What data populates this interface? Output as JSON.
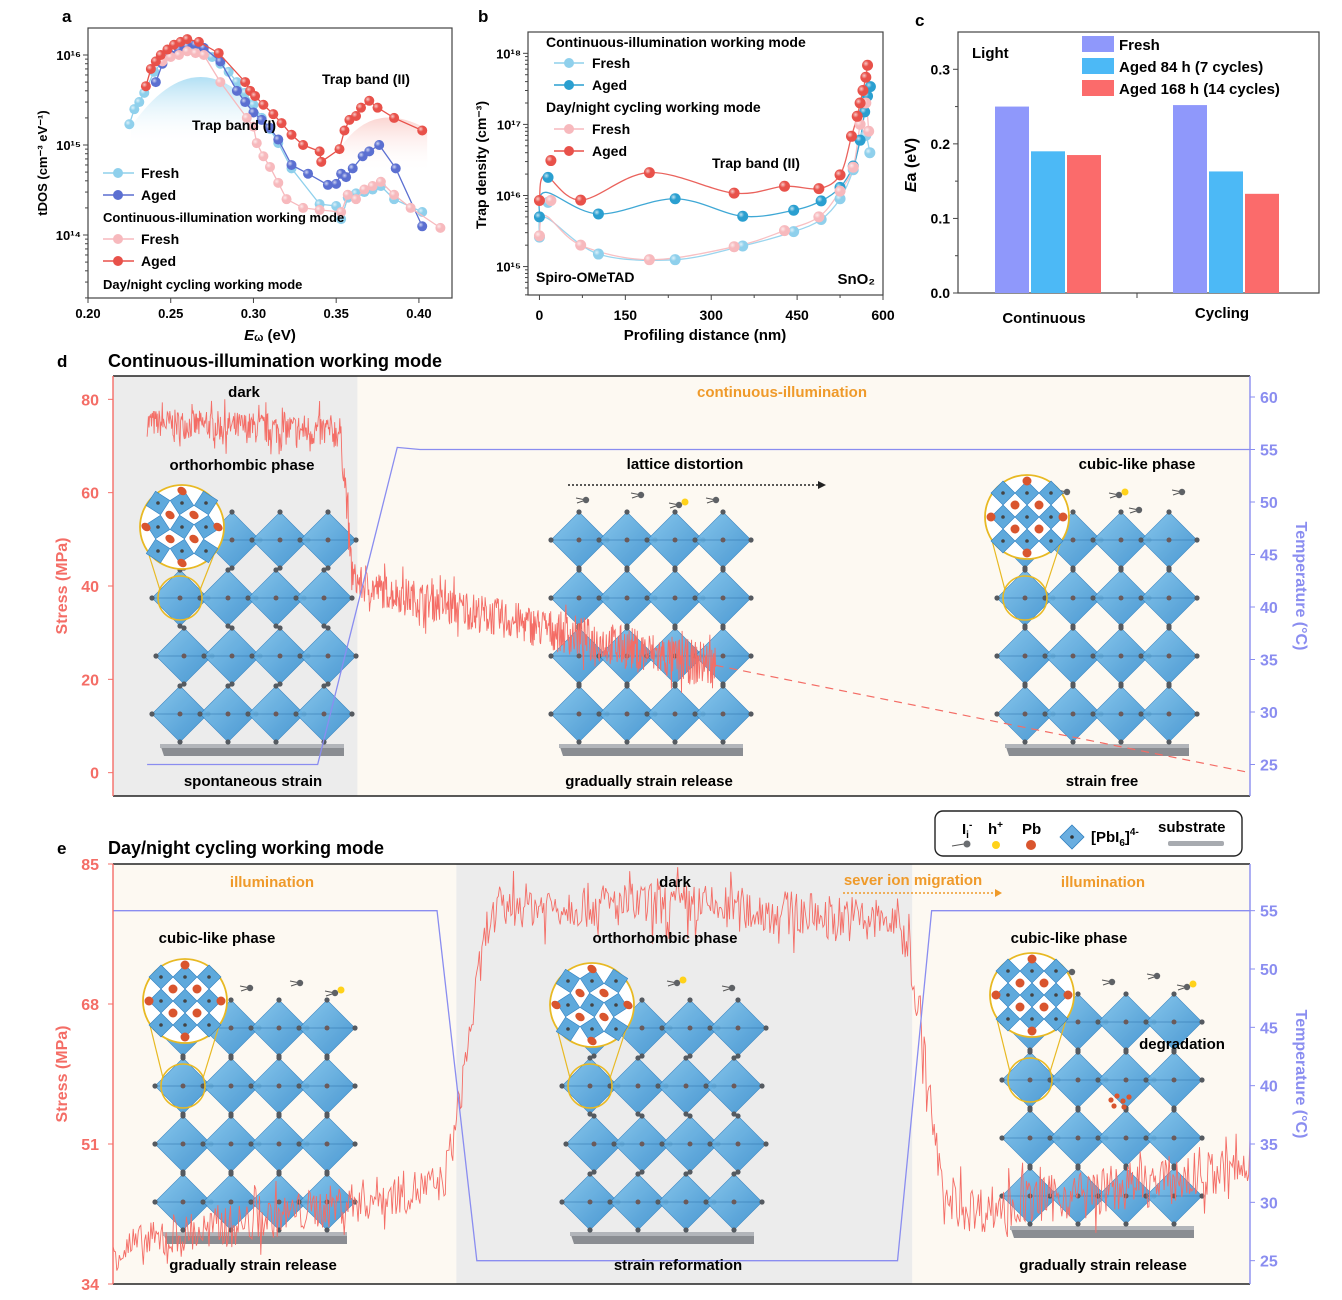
{
  "colors": {
    "fresh_cont": "#8fd0ec",
    "aged_cont_a": "#5b6fd1",
    "fresh_cyc": "#f7b9bd",
    "aged_cyc": "#e8514a",
    "aged_cont_b": "#2a9fd0",
    "bar_fresh": "#8f98fb",
    "bar_aged84": "#4cb9f6",
    "bar_aged168": "#fb6b6b",
    "stress": "#f46d66",
    "temp": "#8a8df0",
    "orange": "#ef9a2a",
    "dark_bg": "#ececec",
    "light_bg": "#fdf9f2"
  },
  "chart_data": [
    {
      "panel": "a",
      "type": "line",
      "panel_label": "a",
      "xlabel_main": "E",
      "xlabel_sub": "ω",
      "xlabel_unit": " (eV)",
      "ylabel": "tDOS (cm⁻³ eV⁻¹)",
      "xlim": [
        0.2,
        0.42
      ],
      "ylim_log10": [
        13.3,
        16.3
      ],
      "yscale": "log",
      "xticks": [
        "0.20",
        "0.25",
        "0.30",
        "0.35",
        "0.40"
      ],
      "xtick_values": [
        0.2,
        0.25,
        0.3,
        0.35,
        0.4
      ],
      "yticks": [
        "10¹⁶",
        "10¹⁵",
        "10¹⁴"
      ],
      "ytick_values": [
        1e+16,
        1000000000000000.0,
        100000000000000.0
      ],
      "annotations": [
        "Trap band (I)",
        "Trap band (II)"
      ],
      "legend": {
        "group1_title": "Continuous-illumination working mode",
        "group2_title": "Day/night cycling working mode",
        "entries": [
          "Fresh",
          "Aged",
          "Fresh",
          "Aged"
        ]
      },
      "series": [
        {
          "name": "Fresh (continuous)",
          "color_key": "fresh_cont",
          "x": [
            0.225,
            0.228,
            0.231,
            0.234,
            0.24,
            0.245,
            0.25,
            0.255,
            0.26,
            0.265,
            0.27,
            0.275,
            0.28,
            0.285,
            0.29,
            0.295,
            0.3,
            0.305,
            0.31,
            0.315,
            0.323,
            0.34,
            0.35,
            0.353,
            0.357,
            0.362,
            0.367,
            0.372,
            0.377,
            0.385,
            0.402
          ],
          "y": [
            1700000000000000.0,
            2500000000000000.0,
            3000000000000000.0,
            3800000000000000.0,
            6500000000000000.0,
            8500000000000000.0,
            1e+16,
            1.1e+16,
            1.15e+16,
            1.15e+16,
            1.1e+16,
            9500000000000000.0,
            8000000000000000.0,
            6500000000000000.0,
            5000000000000000.0,
            3800000000000000.0,
            2800000000000000.0,
            2000000000000000.0,
            1500000000000000.0,
            1050000000000000.0,
            550000000000000.0,
            220000000000000.0,
            210000000000000.0,
            150000000000000.0,
            260000000000000.0,
            290000000000000.0,
            300000000000000.0,
            320000000000000.0,
            350000000000000.0,
            250000000000000.0,
            180000000000000.0
          ]
        },
        {
          "name": "Aged (continuous)",
          "color_key": "aged_cont_a",
          "x": [
            0.241,
            0.245,
            0.25,
            0.255,
            0.26,
            0.265,
            0.27,
            0.28,
            0.29,
            0.295,
            0.3,
            0.305,
            0.31,
            0.315,
            0.323,
            0.333,
            0.345,
            0.35,
            0.353,
            0.356,
            0.36,
            0.366,
            0.37,
            0.376,
            0.386,
            0.402
          ],
          "y": [
            5000000000000000.0,
            8000000000000000.0,
            1e+16,
            1.15e+16,
            1.25e+16,
            1.3e+16,
            1.2e+16,
            8500000000000000.0,
            4000000000000000.0,
            3000000000000000.0,
            2300000000000000.0,
            1900000000000000.0,
            1550000000000000.0,
            1150000000000000.0,
            600000000000000.0,
            480000000000000.0,
            360000000000000.0,
            370000000000000.0,
            480000000000000.0,
            440000000000000.0,
            550000000000000.0,
            750000000000000.0,
            850000000000000.0,
            1000000000000000.0,
            550000000000000.0,
            125000000000000.0
          ]
        },
        {
          "name": "Fresh (cycling)",
          "color_key": "fresh_cyc",
          "x": [
            0.245,
            0.25,
            0.255,
            0.26,
            0.265,
            0.27,
            0.28,
            0.296,
            0.3,
            0.302,
            0.306,
            0.31,
            0.315,
            0.32,
            0.33,
            0.34,
            0.353,
            0.357,
            0.362,
            0.367,
            0.372,
            0.377,
            0.385,
            0.395,
            0.413
          ],
          "y": [
            8500000000000000.0,
            9500000000000000.0,
            1e+16,
            1.1e+16,
            1.05e+16,
            1e+16,
            5000000000000000.0,
            2000000000000000.0,
            1600000000000000.0,
            1050000000000000.0,
            750000000000000.0,
            570000000000000.0,
            380000000000000.0,
            250000000000000.0,
            200000000000000.0,
            190000000000000.0,
            180000000000000.0,
            280000000000000.0,
            250000000000000.0,
            320000000000000.0,
            350000000000000.0,
            390000000000000.0,
            280000000000000.0,
            200000000000000.0,
            120000000000000.0
          ]
        },
        {
          "name": "Aged (cycling)",
          "color_key": "aged_cyc",
          "x": [
            0.235,
            0.238,
            0.241,
            0.244,
            0.248,
            0.252,
            0.256,
            0.26,
            0.267,
            0.279,
            0.295,
            0.298,
            0.301,
            0.306,
            0.312,
            0.317,
            0.323,
            0.33,
            0.34,
            0.341,
            0.352,
            0.355,
            0.358,
            0.362,
            0.365,
            0.37,
            0.375,
            0.385,
            0.402
          ],
          "y": [
            4500000000000000.0,
            7000000000000000.0,
            8500000000000000.0,
            1e+16,
            1.15e+16,
            1.3e+16,
            1.4e+16,
            1.5e+16,
            1.4e+16,
            1.05e+16,
            5000000000000000.0,
            4000000000000000.0,
            3500000000000000.0,
            2800000000000000.0,
            2200000000000000.0,
            1750000000000000.0,
            1300000000000000.0,
            1000000000000000.0,
            850000000000000.0,
            650000000000000.0,
            900000000000000.0,
            1450000000000000.0,
            1900000000000000.0,
            2100000000000000.0,
            2600000000000000.0,
            3100000000000000.0,
            2600000000000000.0,
            2000000000000000.0,
            1450000000000000.0
          ]
        }
      ]
    },
    {
      "panel": "b",
      "type": "line",
      "panel_label": "b",
      "xlabel": "Profiling distance (nm)",
      "ylabel": "Trap density (cm⁻³)",
      "xlim": [
        -20,
        600
      ],
      "ylim_log10": [
        14.6,
        18.3
      ],
      "yscale": "log",
      "xticks": [
        "0",
        "150",
        "300",
        "450",
        "600"
      ],
      "xtick_values": [
        0,
        150,
        300,
        450,
        600
      ],
      "yticks": [
        "10¹⁸",
        "10¹⁷",
        "10¹⁶",
        "10¹⁵"
      ],
      "ytick_values": [
        1e+18,
        1e+17,
        1e+16,
        1000000000000000.0
      ],
      "annotations": [
        "Trap band (II)",
        "Spiro-OMeTAD",
        "SnO₂"
      ],
      "legend": {
        "group1_title": "Continuous-illumination working mode",
        "group2_title": "Day/night cycling working mode",
        "entries": [
          "Fresh",
          "Aged",
          "Fresh",
          "Aged"
        ]
      },
      "series": [
        {
          "name": "Fresh (continuous)",
          "color_key": "fresh_cont",
          "x": [
            0,
            15,
            103,
            237,
            355,
            444,
            492,
            525,
            548,
            560,
            570,
            577
          ],
          "y": [
            2600000000000000.0,
            8000000000000000.0,
            1500000000000000.0,
            1250000000000000.0,
            1950000000000000.0,
            3100000000000000.0,
            4600000000000000.0,
            9000000000000000.0,
            2.3e+16,
            6e+16,
            7e+16,
            4e+16
          ]
        },
        {
          "name": "Aged (continuous)",
          "color_key": "aged_cont_b",
          "x": [
            0,
            15,
            103,
            237,
            355,
            444,
            492,
            525,
            548,
            560,
            568,
            573,
            578
          ],
          "y": [
            5000000000000000.0,
            1.8e+16,
            5500000000000000.0,
            9000000000000000.0,
            5100000000000000.0,
            6200000000000000.0,
            8400000000000000.0,
            1.3e+16,
            2.6e+16,
            6e+16,
            1.5e+17,
            2.5e+17,
            3.4e+17
          ]
        },
        {
          "name": "Fresh (cycling)",
          "color_key": "fresh_cyc",
          "x": [
            0,
            20,
            72,
            192,
            340,
            428,
            488,
            525,
            548,
            560,
            570,
            575
          ],
          "y": [
            2700000000000000.0,
            8500000000000000.0,
            2000000000000000.0,
            1250000000000000.0,
            1900000000000000.0,
            3200000000000000.0,
            5000000000000000.0,
            1.15e+16,
            2.5e+16,
            1e+17,
            2e+17,
            8e+16
          ]
        },
        {
          "name": "Aged (cycling)",
          "color_key": "aged_cyc",
          "x": [
            0,
            20,
            72,
            192,
            340,
            428,
            488,
            525,
            545,
            555,
            560,
            565,
            570,
            573
          ],
          "y": [
            8500000000000000.0,
            3.1e+16,
            8600000000000000.0,
            2.1e+16,
            1.08e+16,
            1.35e+16,
            1.25e+16,
            1.95e+16,
            6.8e+16,
            1.3e+17,
            2e+17,
            3e+17,
            4.6e+17,
            6.8e+17
          ]
        }
      ]
    },
    {
      "panel": "c",
      "type": "bar",
      "panel_label": "c",
      "title_inside": "Light",
      "ylabel_main": "E",
      "ylabel_sub": "a",
      "ylabel_unit": "  (eV)",
      "categories": [
        "Continuous",
        "Cycling"
      ],
      "ylim": [
        0,
        0.35
      ],
      "yticks": [
        "0.0",
        "0.1",
        "0.2",
        "0.3"
      ],
      "ytick_values": [
        0,
        0.1,
        0.2,
        0.3
      ],
      "legend_placement": "top-right",
      "series": [
        {
          "name": "Fresh",
          "color_key": "bar_fresh",
          "values": [
            0.25,
            0.252
          ]
        },
        {
          "name": "Aged 84 h (7 cycles)",
          "color_key": "bar_aged84",
          "values": [
            0.19,
            0.163
          ]
        },
        {
          "name": "Aged 168 h (14 cycles)",
          "color_key": "bar_aged168",
          "values": [
            0.185,
            0.133
          ]
        }
      ]
    },
    {
      "panel": "d",
      "type": "line",
      "panel_label": "d",
      "title": "Continuous-illumination working mode",
      "ylabel_left": "Stress (MPa)",
      "ylabel_right": "Temperature (°C)",
      "ylim_left": [
        -5,
        85
      ],
      "ylim_right": [
        22,
        62
      ],
      "yticks_left": [
        "0",
        "20",
        "40",
        "60",
        "80"
      ],
      "ytick_values_left": [
        0,
        20,
        40,
        60,
        80
      ],
      "yticks_right": [
        "25",
        "30",
        "35",
        "40",
        "45",
        "50",
        "55",
        "60"
      ],
      "ytick_values_right": [
        25,
        30,
        35,
        40,
        45,
        50,
        55,
        60
      ],
      "x_fraction_range": [
        0,
        1
      ],
      "regions": [
        {
          "label": "dark",
          "from": 0.0,
          "to": 0.215,
          "kind": "dark"
        },
        {
          "label": "continuous-illumination",
          "from": 0.215,
          "to": 1.0,
          "kind": "light"
        }
      ],
      "stress_trace": {
        "x": [
          0.03,
          0.2,
          0.2,
          0.205,
          0.21,
          0.22,
          0.5,
          0.53
        ],
        "y": [
          75,
          73,
          72,
          60,
          42,
          40,
          24,
          23
        ],
        "noise_MPa": [
          3,
          5
        ]
      },
      "stress_extrapolation": {
        "x": [
          0.53,
          1.0
        ],
        "y": [
          23,
          0
        ]
      },
      "temperature_trace": {
        "x": [
          0.03,
          0.18,
          0.25,
          0.27,
          1.0
        ],
        "y": [
          25,
          25,
          55.2,
          55,
          55
        ]
      },
      "labels": {
        "top_dark": "dark",
        "top_light": "continuous-illumination",
        "phase_left": "orthorhombic phase",
        "arrow_label": "lattice distortion",
        "phase_right": "cubic-like phase",
        "bottom_left": "spontaneous strain",
        "bottom_mid": "gradually strain release",
        "bottom_right": "strain free"
      }
    },
    {
      "panel": "e",
      "type": "line",
      "panel_label": "e",
      "title": "Day/night cycling working mode",
      "ylabel_left": "Stress (MPa)",
      "ylabel_right": "Temperature (°C)",
      "ylim_left": [
        34,
        85
      ],
      "ylim_right": [
        23,
        59
      ],
      "yticks_left": [
        "34",
        "51",
        "68",
        "85"
      ],
      "ytick_values_left": [
        34,
        51,
        68,
        85
      ],
      "yticks_right": [
        "25",
        "30",
        "35",
        "40",
        "45",
        "50",
        "55"
      ],
      "ytick_values_right": [
        25,
        30,
        35,
        40,
        45,
        50,
        55
      ],
      "regions": [
        {
          "label": "illumination",
          "from": 0.0,
          "to": 0.302,
          "kind": "light"
        },
        {
          "label": "dark",
          "from": 0.302,
          "to": 0.703,
          "kind": "dark"
        },
        {
          "label": "illumination",
          "from": 0.703,
          "to": 1.0,
          "kind": "light"
        }
      ],
      "stress_trace": {
        "x": [
          0.0,
          0.1,
          0.25,
          0.29,
          0.3,
          0.32,
          0.33,
          0.35,
          0.5,
          0.69,
          0.7,
          0.72,
          0.73,
          0.76,
          0.9,
          1.0
        ],
        "y": [
          38,
          41,
          45,
          46,
          52,
          70,
          78,
          80,
          80,
          78,
          75,
          55,
          44,
          43,
          46,
          48
        ],
        "noise_MPa": [
          2.5,
          3
        ]
      },
      "temperature_trace": {
        "x": [
          0.0,
          0.285,
          0.32,
          0.69,
          0.72,
          1.0
        ],
        "y": [
          55,
          55,
          25,
          25,
          55,
          55
        ]
      },
      "labels": {
        "top_left": "illumination",
        "top_mid": "dark",
        "top_annotation": "sever ion migration",
        "top_right": "illumination",
        "phase_left": "cubic-like phase",
        "phase_mid": "orthorhombic phase",
        "phase_right": "cubic-like phase",
        "degradation": "degradation",
        "bottom_left": "gradually strain release",
        "bottom_mid": "strain reformation",
        "bottom_right": "gradually strain release"
      },
      "structure_legend": {
        "items": [
          {
            "label": "I",
            "sub": "i",
            "sup": "-",
            "icon": "iodide-interstitial-icon"
          },
          {
            "label": "h",
            "sup": "+",
            "icon": "hole-icon"
          },
          {
            "label": "Pb",
            "icon": "lead-atom-icon"
          },
          {
            "label": "[PbI",
            "sub": "6",
            "after": "]",
            "sup": "4-",
            "icon": "octahedron-icon"
          },
          {
            "label": "substrate",
            "icon": "substrate-icon"
          }
        ]
      }
    }
  ]
}
